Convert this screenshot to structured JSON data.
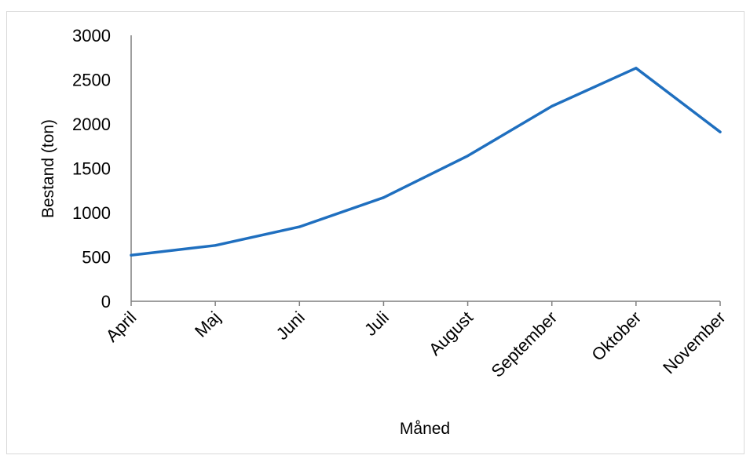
{
  "chart_data": {
    "type": "line",
    "title": "",
    "xlabel": "Måned",
    "ylabel": "Bestand (ton)",
    "categories": [
      "April",
      "Maj",
      "Juni",
      "Juli",
      "August",
      "September",
      "Oktober",
      "November"
    ],
    "series": [
      {
        "values": [
          520,
          630,
          840,
          1170,
          1640,
          2200,
          2630,
          1910
        ],
        "color": "#1f6fbf"
      }
    ],
    "ylim": [
      0,
      3000
    ],
    "yticks": [
      "0",
      "500",
      "1000",
      "1500",
      "2000",
      "2500",
      "3000"
    ],
    "grid": false,
    "legend": "none",
    "colors": {
      "line": "#1f6fbf",
      "axis": "#7f7f7f",
      "frame": "#d9d9d9"
    }
  }
}
